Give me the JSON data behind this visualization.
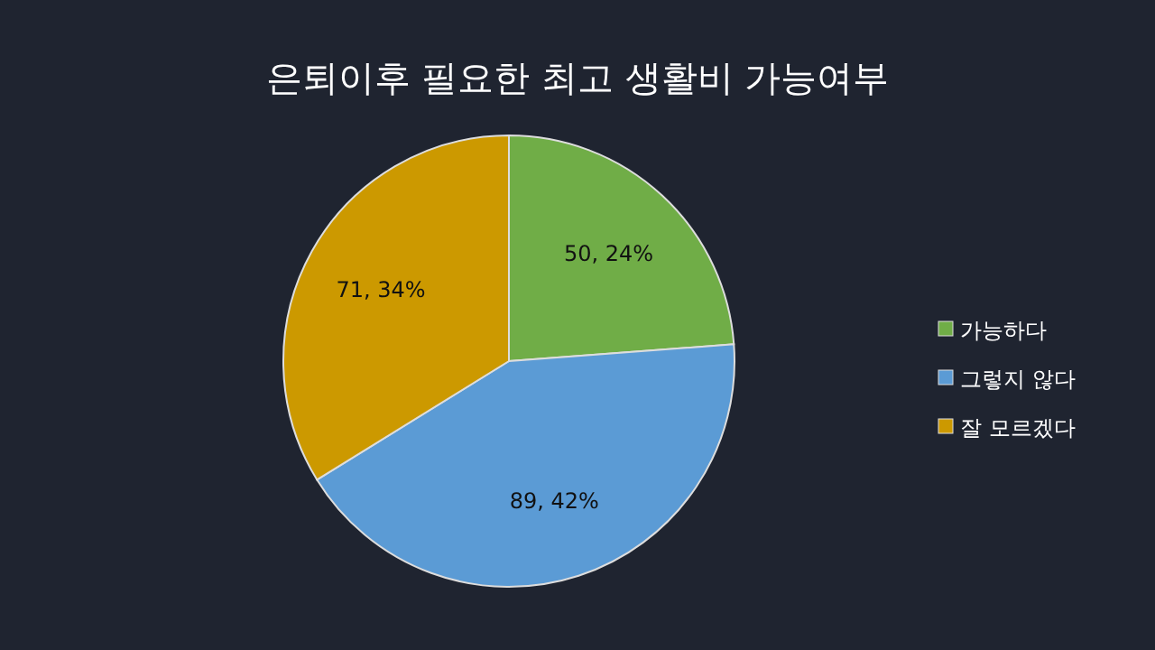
{
  "chart_data": {
    "type": "pie",
    "title": "은퇴이후 필요한 최고 생활비 가능여부",
    "categories": [
      "가능하다",
      "그렇지 않다",
      "잘 모르겠다"
    ],
    "values": [
      50,
      89,
      71
    ],
    "colors": [
      "#70ad47",
      "#5b9bd5",
      "#cc9900"
    ],
    "value_labels": [
      "50, 24%",
      "89, 42%",
      "71, 34%"
    ],
    "legend": "right"
  }
}
